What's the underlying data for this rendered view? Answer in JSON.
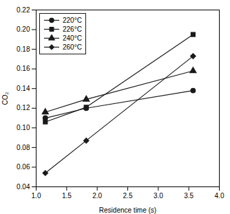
{
  "chart_data": {
    "type": "line",
    "xlabel": "Residence time (s)",
    "ylabel": "CO₂",
    "xlim": [
      1.0,
      4.0
    ],
    "ylim": [
      0.04,
      0.22
    ],
    "xticks": [
      {
        "value": 1.0,
        "label": "1.0"
      },
      1.5,
      {
        "value": 2.0,
        "label": "2.0"
      },
      2.5,
      {
        "value": 3.0,
        "label": "3.0"
      },
      3.5,
      {
        "value": 4.0,
        "label": "4.0"
      }
    ],
    "yticks": [
      0.04,
      0.06,
      0.08,
      {
        "value": 0.1,
        "label": "0.10"
      },
      0.12,
      0.14,
      0.16,
      0.18,
      {
        "value": 0.2,
        "label": "0.20"
      },
      0.22
    ],
    "x": [
      1.15,
      1.82,
      3.57
    ],
    "series": [
      {
        "name": "220°C",
        "color": "#1a1a1a",
        "marker": "circle",
        "values": [
          0.11,
          0.12,
          0.138
        ]
      },
      {
        "name": "226°C",
        "color": "#1a1a1a",
        "marker": "square",
        "values": [
          0.106,
          0.121,
          0.195
        ]
      },
      {
        "name": "240°C",
        "color": "#1a1a1a",
        "marker": "triangle",
        "values": [
          0.116,
          0.129,
          0.158
        ]
      },
      {
        "name": "260°C",
        "color": "#1a1a1a",
        "marker": "diamond",
        "values": [
          0.054,
          0.087,
          0.173
        ]
      }
    ],
    "legend": "upper left",
    "grid": false
  }
}
